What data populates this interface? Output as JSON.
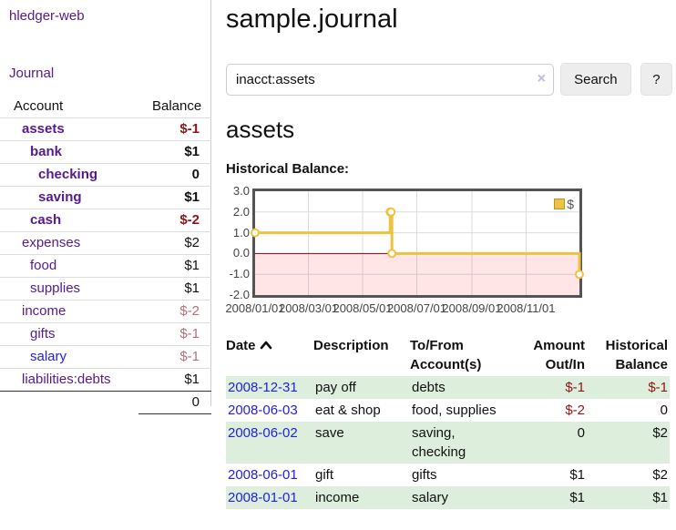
{
  "colors": {
    "link_visited": "#551a8b",
    "link_unvisited": "#2222dd",
    "negative_strong": "#911414",
    "negative_muted": "#b3707a",
    "row_stripe_green": "#ddeedd",
    "button_bg": "#ededed",
    "chart_series_gold": "#edc240"
  },
  "sidebar": {
    "brand": "hledger-web",
    "journal_link": "Journal",
    "accounts_table": {
      "account_header": "Account",
      "balance_header": "Balance",
      "rows": [
        {
          "name": "assets",
          "balance": "$-1"
        },
        {
          "name": "bank",
          "balance": "$1"
        },
        {
          "name": "checking",
          "balance": "0"
        },
        {
          "name": "saving",
          "balance": "$1"
        },
        {
          "name": "cash",
          "balance": "$-2"
        },
        {
          "name": "expenses",
          "balance": "$2"
        },
        {
          "name": "food",
          "balance": "$1"
        },
        {
          "name": "supplies",
          "balance": "$1"
        },
        {
          "name": "income",
          "balance": "$-2"
        },
        {
          "name": "gifts",
          "balance": "$-1"
        },
        {
          "name": "salary",
          "balance": "$-1"
        },
        {
          "name": "liabilities:debts",
          "balance": "$1"
        }
      ],
      "total": "0"
    }
  },
  "header": {
    "title": "sample.journal"
  },
  "search": {
    "value": "inacct:assets",
    "clear_icon": "×",
    "search_button": "Search",
    "help_button": "?"
  },
  "account_page": {
    "heading": "assets",
    "chart_title": "Historical Balance:"
  },
  "chart_data": {
    "type": "line",
    "step": true,
    "title": "Historical Balance",
    "xlim": [
      "2008-01-01",
      "2008-12-31"
    ],
    "ylim": [
      -2.0,
      3.0
    ],
    "x_ticks": [
      "2008/01/01",
      "2008/03/01",
      "2008/05/01",
      "2008/07/01",
      "2008/09/01",
      "2008/11/01"
    ],
    "y_ticks": [
      "3.0",
      "2.0",
      "1.0",
      "0.0",
      "-1.0",
      "-2.0"
    ],
    "grid": true,
    "legend_position": "top-right",
    "negative_fill": "rgba(255,0,0,0.1)",
    "zero_line_color": "#8b0000",
    "series": [
      {
        "name": "$",
        "color": "#edc240",
        "points": [
          [
            "2008-01-01",
            1
          ],
          [
            "2008-06-01",
            2
          ],
          [
            "2008-06-02",
            2
          ],
          [
            "2008-06-03",
            0
          ],
          [
            "2008-12-31",
            -1
          ]
        ]
      }
    ]
  },
  "register": {
    "columns": {
      "date": "Date",
      "description": "Description",
      "accounts": "To/From Account(s)",
      "amount": "Amount Out/In",
      "balance": "Historical Balance"
    },
    "rows": [
      {
        "date": "2008-12-31",
        "description": "pay off",
        "accounts": "debts",
        "amount": "$-1",
        "balance": "$-1"
      },
      {
        "date": "2008-06-03",
        "description": "eat & shop",
        "accounts": "food, supplies",
        "amount": "$-2",
        "balance": "0"
      },
      {
        "date": "2008-06-02",
        "description": "save",
        "accounts": "saving, checking",
        "amount": "0",
        "balance": "$2"
      },
      {
        "date": "2008-06-01",
        "description": "gift",
        "accounts": "gifts",
        "amount": "$1",
        "balance": "$2"
      },
      {
        "date": "2008-01-01",
        "description": "income",
        "accounts": "salary",
        "amount": "$1",
        "balance": "$1"
      }
    ]
  }
}
